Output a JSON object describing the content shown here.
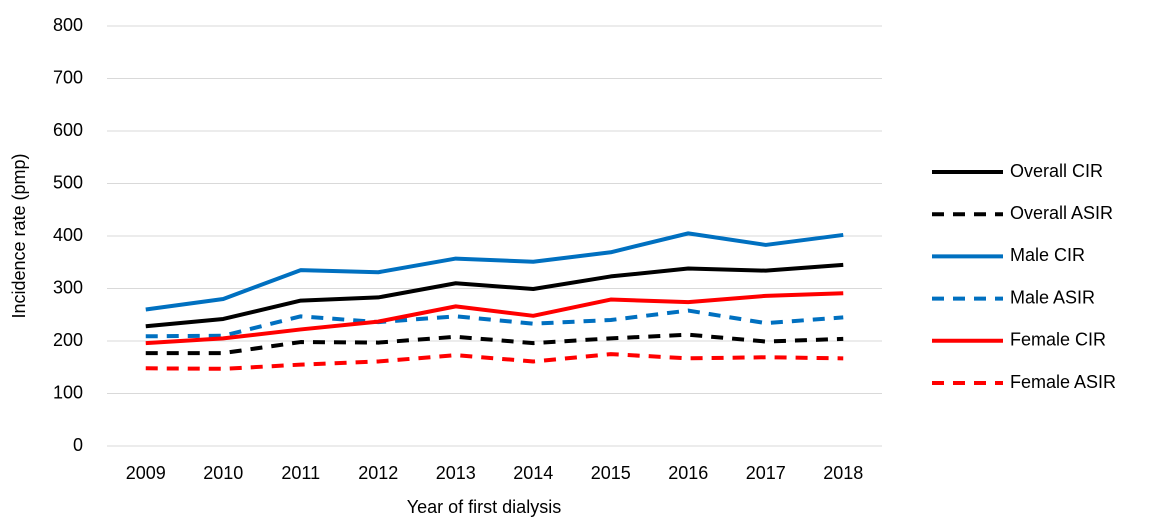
{
  "chart_data": {
    "type": "line",
    "x_label": "Year of first dialysis",
    "y_label": "Incidence rate (pmp)",
    "categories": [
      "2009",
      "2010",
      "2011",
      "2012",
      "2013",
      "2014",
      "2015",
      "2016",
      "2017",
      "2018"
    ],
    "series": [
      {
        "name": "Overall CIR",
        "color": "#000000",
        "dashed": false,
        "values": [
          228,
          242,
          277,
          283,
          310,
          299,
          323,
          338,
          334,
          345
        ]
      },
      {
        "name": "Overall ASIR",
        "color": "#000000",
        "dashed": true,
        "values": [
          177,
          177,
          198,
          197,
          208,
          196,
          205,
          212,
          199,
          204
        ]
      },
      {
        "name": "Male CIR",
        "color": "#0070c0",
        "dashed": false,
        "values": [
          260,
          280,
          335,
          331,
          357,
          351,
          369,
          405,
          383,
          402
        ]
      },
      {
        "name": "Male ASIR",
        "color": "#0070c0",
        "dashed": true,
        "values": [
          209,
          210,
          247,
          236,
          247,
          233,
          240,
          258,
          234,
          245
        ]
      },
      {
        "name": "Female CIR",
        "color": "#ff0000",
        "dashed": false,
        "values": [
          196,
          205,
          222,
          237,
          266,
          248,
          279,
          274,
          286,
          291
        ]
      },
      {
        "name": "Female ASIR",
        "color": "#ff0000",
        "dashed": true,
        "values": [
          148,
          147,
          155,
          161,
          173,
          161,
          175,
          167,
          169,
          167
        ]
      }
    ],
    "ylim": [
      0,
      800
    ],
    "yticks": [
      0,
      100,
      200,
      300,
      400,
      500,
      600,
      700,
      800
    ],
    "grid": true,
    "legend": "right"
  }
}
